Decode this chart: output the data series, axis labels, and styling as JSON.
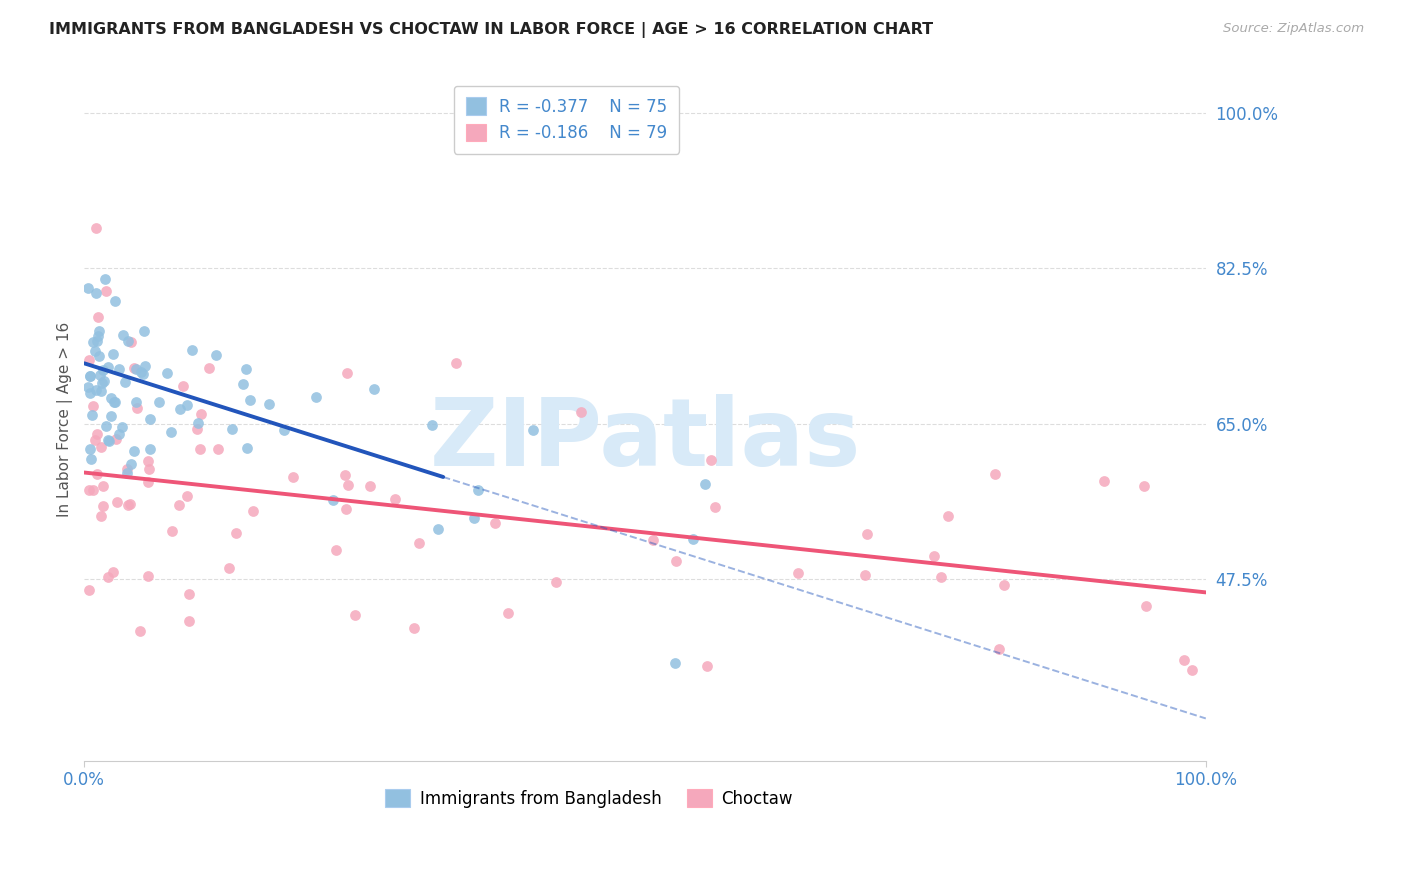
{
  "title": "IMMIGRANTS FROM BANGLADESH VS CHOCTAW IN LABOR FORCE | AGE > 16 CORRELATION CHART",
  "source": "Source: ZipAtlas.com",
  "ylabel": "In Labor Force | Age > 16",
  "xlim": [
    0.0,
    1.0
  ],
  "ylim": [
    0.27,
    1.04
  ],
  "ytick_vals": [
    0.475,
    0.65,
    0.825,
    1.0
  ],
  "ytick_labels": [
    "47.5%",
    "65.0%",
    "82.5%",
    "100.0%"
  ],
  "xtick_vals": [
    0.0,
    1.0
  ],
  "xtick_labels": [
    "0.0%",
    "100.0%"
  ],
  "blue_R": -0.377,
  "blue_N": 75,
  "pink_R": -0.186,
  "pink_N": 79,
  "blue_color": "#92C0E0",
  "pink_color": "#F5A8BC",
  "blue_line_color": "#2255BB",
  "pink_line_color": "#EE5577",
  "blue_line_solid_end": 0.32,
  "blue_line_intercept": 0.718,
  "blue_line_slope": -0.4,
  "pink_line_intercept": 0.595,
  "pink_line_slope": -0.135,
  "legend_label_blue": "Immigrants from Bangladesh",
  "legend_label_pink": "Choctaw",
  "title_color": "#222222",
  "axis_label_color": "#4488CC",
  "watermark_text": "ZIPatlas",
  "watermark_color": "#D8EAF8",
  "grid_color": "#DDDDDD",
  "background_color": "#FFFFFF"
}
